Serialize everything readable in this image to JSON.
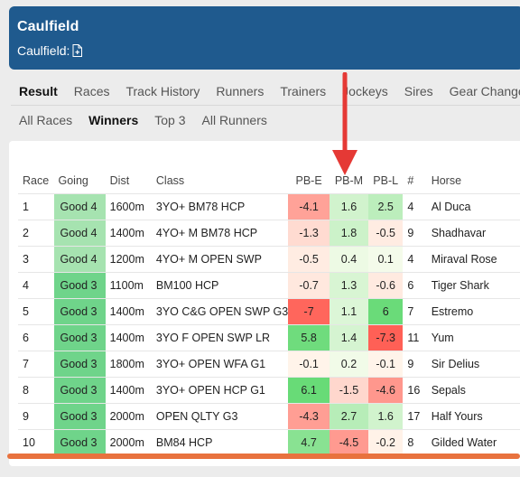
{
  "header": {
    "title": "Caulfield",
    "subtitle": "Caulfield:"
  },
  "tabs": [
    "Result",
    "Races",
    "Track History",
    "Runners",
    "Trainers",
    "Jockeys",
    "Sires",
    "Gear Changes"
  ],
  "active_tab": "Result",
  "subtabs": [
    "All Races",
    "Winners",
    "Top 3",
    "All Runners"
  ],
  "active_subtab": "Winners",
  "table": {
    "headers": [
      "Race",
      "Going",
      "Dist",
      "Class",
      "PB-E",
      "PB-M",
      "PB-L",
      "#",
      "Horse"
    ],
    "rows": [
      [
        "1",
        "Good 4",
        "1600m",
        "3YO+ BM78 HCP",
        "-4.1",
        "1.6",
        "2.5",
        "4",
        "Al Duca"
      ],
      [
        "2",
        "Good 4",
        "1400m",
        "4YO+ M BM78 HCP",
        "-1.3",
        "1.8",
        "-0.5",
        "9",
        "Shadhavar"
      ],
      [
        "3",
        "Good 4",
        "1200m",
        "4YO+ M OPEN SWP",
        "-0.5",
        "0.4",
        "0.1",
        "4",
        "Miraval Rose"
      ],
      [
        "4",
        "Good 3",
        "1100m",
        "BM100 HCP",
        "-0.7",
        "1.3",
        "-0.6",
        "6",
        "Tiger Shark"
      ],
      [
        "5",
        "Good 3",
        "1400m",
        "3YO C&G OPEN SWP G3",
        "-7",
        "1.1",
        "6",
        "7",
        "Estremo"
      ],
      [
        "6",
        "Good 3",
        "1400m",
        "3YO F OPEN SWP LR",
        "5.8",
        "1.4",
        "-7.3",
        "11",
        "Yum"
      ],
      [
        "7",
        "Good 3",
        "1800m",
        "3YO+ OPEN WFA G1",
        "-0.1",
        "0.2",
        "-0.1",
        "9",
        "Sir Delius"
      ],
      [
        "8",
        "Good 3",
        "1400m",
        "3YO+ OPEN HCP G1",
        "6.1",
        "-1.5",
        "-4.6",
        "16",
        "Sepals"
      ],
      [
        "9",
        "Good 3",
        "2000m",
        "OPEN QLTY G3",
        "-4.3",
        "2.7",
        "1.6",
        "17",
        "Half Yours"
      ],
      [
        "10",
        "Good 3",
        "2000m",
        "BM84 HCP",
        "4.7",
        "-4.5",
        "-0.2",
        "8",
        "Gilded Water"
      ]
    ]
  },
  "colors": {
    "header_bg": "#1f5a8e",
    "going_good4": "#a6e3b0",
    "going_good3": "#6fd48a",
    "arrow": "#e53935",
    "bottom_bar": "#e8723e"
  }
}
